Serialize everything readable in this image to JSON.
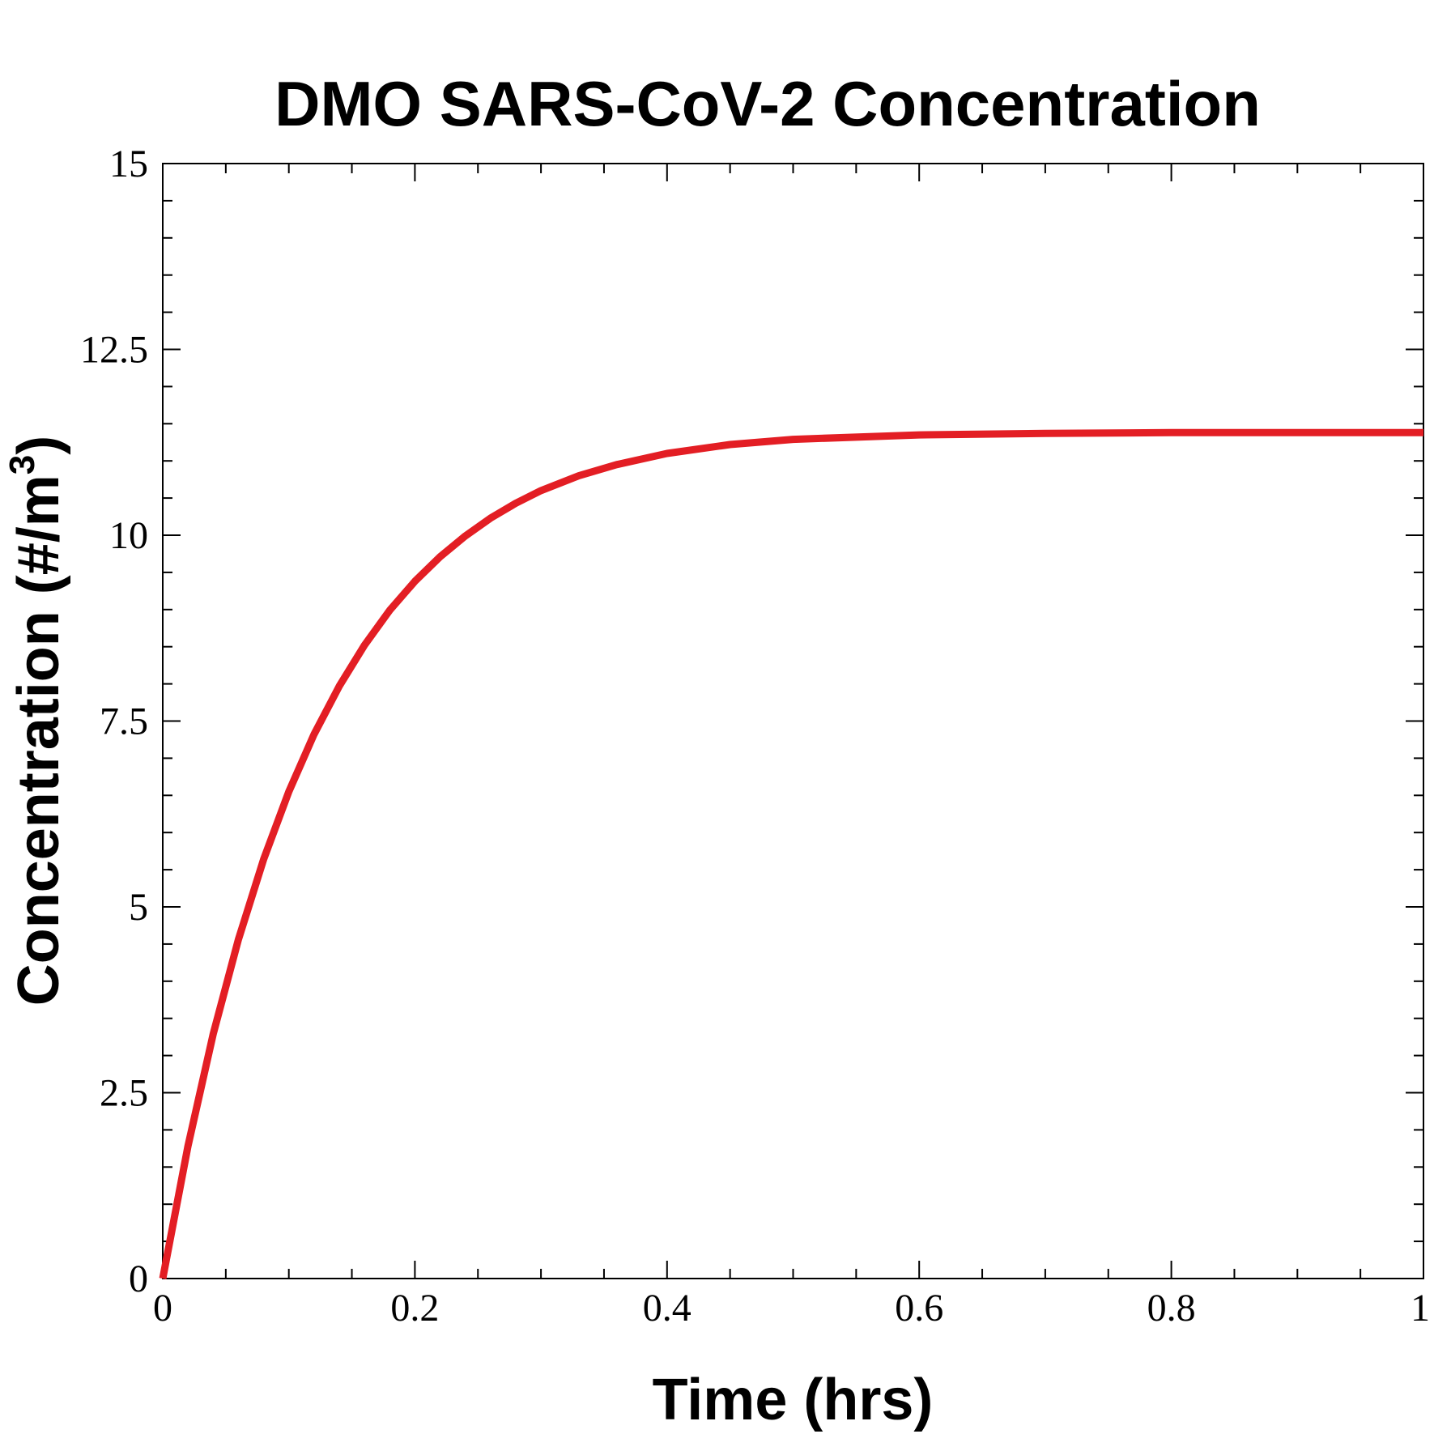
{
  "chart_data": {
    "type": "line",
    "title": "DMO SARS-CoV-2 Concentration",
    "xlabel": "Time (hrs)",
    "ylabel_main": "Concentration (#/m",
    "ylabel_sup": "3",
    "ylabel_close": ")",
    "xlim": [
      0,
      1
    ],
    "ylim": [
      0,
      15
    ],
    "x_ticks": [
      0,
      0.2,
      0.4,
      0.6,
      0.8,
      1
    ],
    "x_tick_labels": [
      "0",
      "0.2",
      "0.4",
      "0.6",
      "0.8",
      "1"
    ],
    "x_minor_step": 0.05,
    "y_ticks": [
      0,
      2.5,
      5,
      7.5,
      10,
      12.5,
      15
    ],
    "y_tick_labels": [
      "0",
      "2.5",
      "5",
      "7.5",
      "10",
      "12.5",
      "15"
    ],
    "y_minor_step": 0.5,
    "grid": false,
    "series": [
      {
        "color": "#e31e24",
        "x": [
          0,
          0.02,
          0.04,
          0.06,
          0.08,
          0.1,
          0.12,
          0.14,
          0.16,
          0.18,
          0.2,
          0.22,
          0.24,
          0.26,
          0.28,
          0.3,
          0.33,
          0.36,
          0.4,
          0.45,
          0.5,
          0.6,
          0.7,
          0.8,
          0.9,
          1.0
        ],
        "y": [
          0,
          1.78,
          3.29,
          4.56,
          5.64,
          6.55,
          7.32,
          7.97,
          8.52,
          8.99,
          9.38,
          9.71,
          9.99,
          10.23,
          10.43,
          10.6,
          10.8,
          10.95,
          11.1,
          11.22,
          11.29,
          11.35,
          11.37,
          11.38,
          11.38,
          11.38
        ]
      }
    ]
  }
}
